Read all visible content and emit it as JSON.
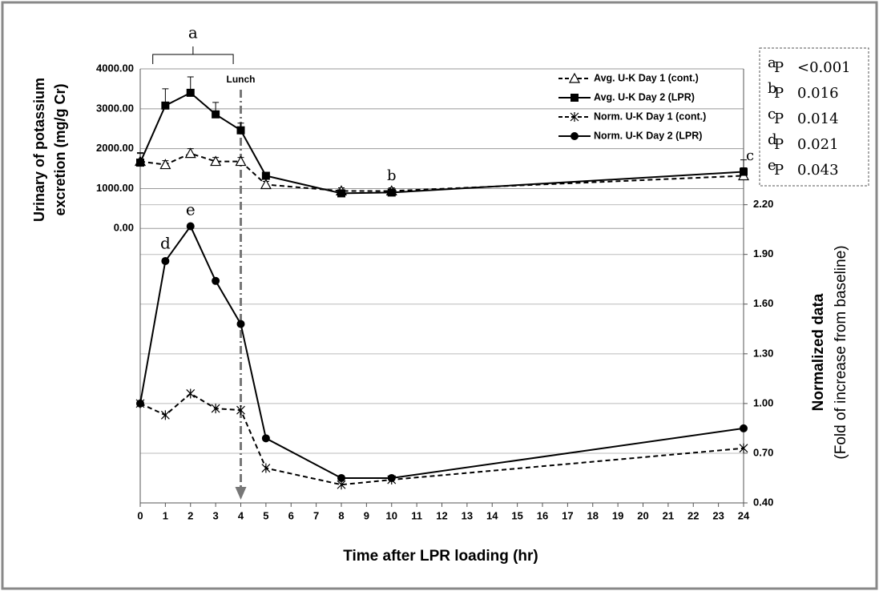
{
  "chart_data": {
    "type": "line",
    "xlabel": "Time after LPR loading (hr)",
    "ylabel": [
      "Urinary of potassium",
      "excretion (mg/g Cr)"
    ],
    "y2label": [
      "Normalized data",
      "(Fold of increase from baseline)"
    ],
    "x": [
      0,
      1,
      2,
      3,
      4,
      5,
      8,
      10,
      24
    ],
    "xlim": [
      0,
      24
    ],
    "xticks": [
      0,
      1,
      2,
      3,
      4,
      5,
      6,
      7,
      8,
      9,
      10,
      11,
      12,
      13,
      14,
      15,
      16,
      17,
      18,
      19,
      20,
      21,
      22,
      23,
      24
    ],
    "ylim": [
      -6880,
      4000
    ],
    "yticks": [
      {
        "value": 0,
        "label": "0.00"
      },
      {
        "value": 1000,
        "label": "1000.00"
      },
      {
        "value": 2000,
        "label": "2000.00"
      },
      {
        "value": 3000,
        "label": "3000.00"
      },
      {
        "value": 4000,
        "label": "4000.00"
      }
    ],
    "y2lim": [
      0.4,
      3.02
    ],
    "y2ticks": [
      {
        "value": 0.4,
        "label": "0.40"
      },
      {
        "value": 0.7,
        "label": "0.70"
      },
      {
        "value": 1.0,
        "label": "1.00"
      },
      {
        "value": 1.3,
        "label": "1.30"
      },
      {
        "value": 1.6,
        "label": "1.60"
      },
      {
        "value": 1.9,
        "label": "1.90"
      },
      {
        "value": 2.2,
        "label": "2.20"
      }
    ],
    "grid": true,
    "legend": "upper right",
    "series": [
      {
        "name": "Avg. U-K Day 1 (cont.)",
        "color": "#000000",
        "marker": "triangle-open",
        "dashed": true,
        "values": [
          1680,
          1600,
          1880,
          1680,
          1680,
          1100,
          940,
          940,
          1320
        ],
        "errors": [
          200,
          100,
          120,
          100,
          100,
          80,
          80,
          80,
          200
        ]
      },
      {
        "name": "Avg. U-K Day 2 (LPR)",
        "color": "#000000",
        "marker": "square",
        "dashed": false,
        "values": [
          1650,
          3080,
          3400,
          2860,
          2460,
          1320,
          880,
          900,
          1420
        ],
        "errors": [
          250,
          420,
          400,
          300,
          180,
          80,
          80,
          80,
          300
        ]
      },
      {
        "name": "Norm. U-K  Day 1 (cont.)",
        "color": "#000000",
        "marker": "asterisk",
        "dashed": true,
        "axis": "y2",
        "values": [
          1.0,
          0.93,
          1.06,
          0.97,
          0.96,
          0.61,
          0.51,
          0.54,
          0.73
        ]
      },
      {
        "name": "Norm. U-K Day 2 (LPR)",
        "color": "#000000",
        "marker": "circle",
        "dashed": false,
        "axis": "y2",
        "values": [
          1.0,
          1.86,
          2.07,
          1.74,
          1.48,
          0.79,
          0.55,
          0.55,
          0.85
        ]
      }
    ],
    "annotations": [
      "a",
      "Lunch",
      "b",
      "c",
      "d",
      "e"
    ],
    "pvalues": [
      {
        "sup": "a",
        "p": "P",
        "value": "<0.001"
      },
      {
        "sup": "b",
        "p": "P",
        "value": "0.016"
      },
      {
        "sup": "c",
        "p": "P",
        "value": "0.014"
      },
      {
        "sup": "d",
        "p": "P",
        "value": "0.021"
      },
      {
        "sup": "e",
        "p": "P",
        "value": "0.043"
      }
    ]
  }
}
